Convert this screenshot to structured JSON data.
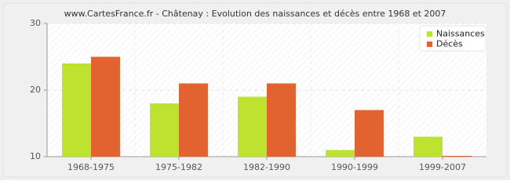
{
  "chart_data": {
    "type": "bar",
    "title": "www.CartesFrance.fr - Châtenay : Evolution des naissances et décès entre 1968 et 2007",
    "categories": [
      "1968-1975",
      "1975-1982",
      "1982-1990",
      "1990-1999",
      "1999-2007"
    ],
    "series": [
      {
        "name": "Naissances",
        "color": "#bde22f",
        "values": [
          24,
          18,
          19,
          11,
          13
        ]
      },
      {
        "name": "Décès",
        "color": "#e06330",
        "values": [
          25,
          21,
          21,
          17,
          10
        ]
      }
    ],
    "ylim": [
      10,
      30
    ],
    "yticks": [
      10,
      20,
      30
    ],
    "grid": true,
    "legend": "top-right"
  }
}
